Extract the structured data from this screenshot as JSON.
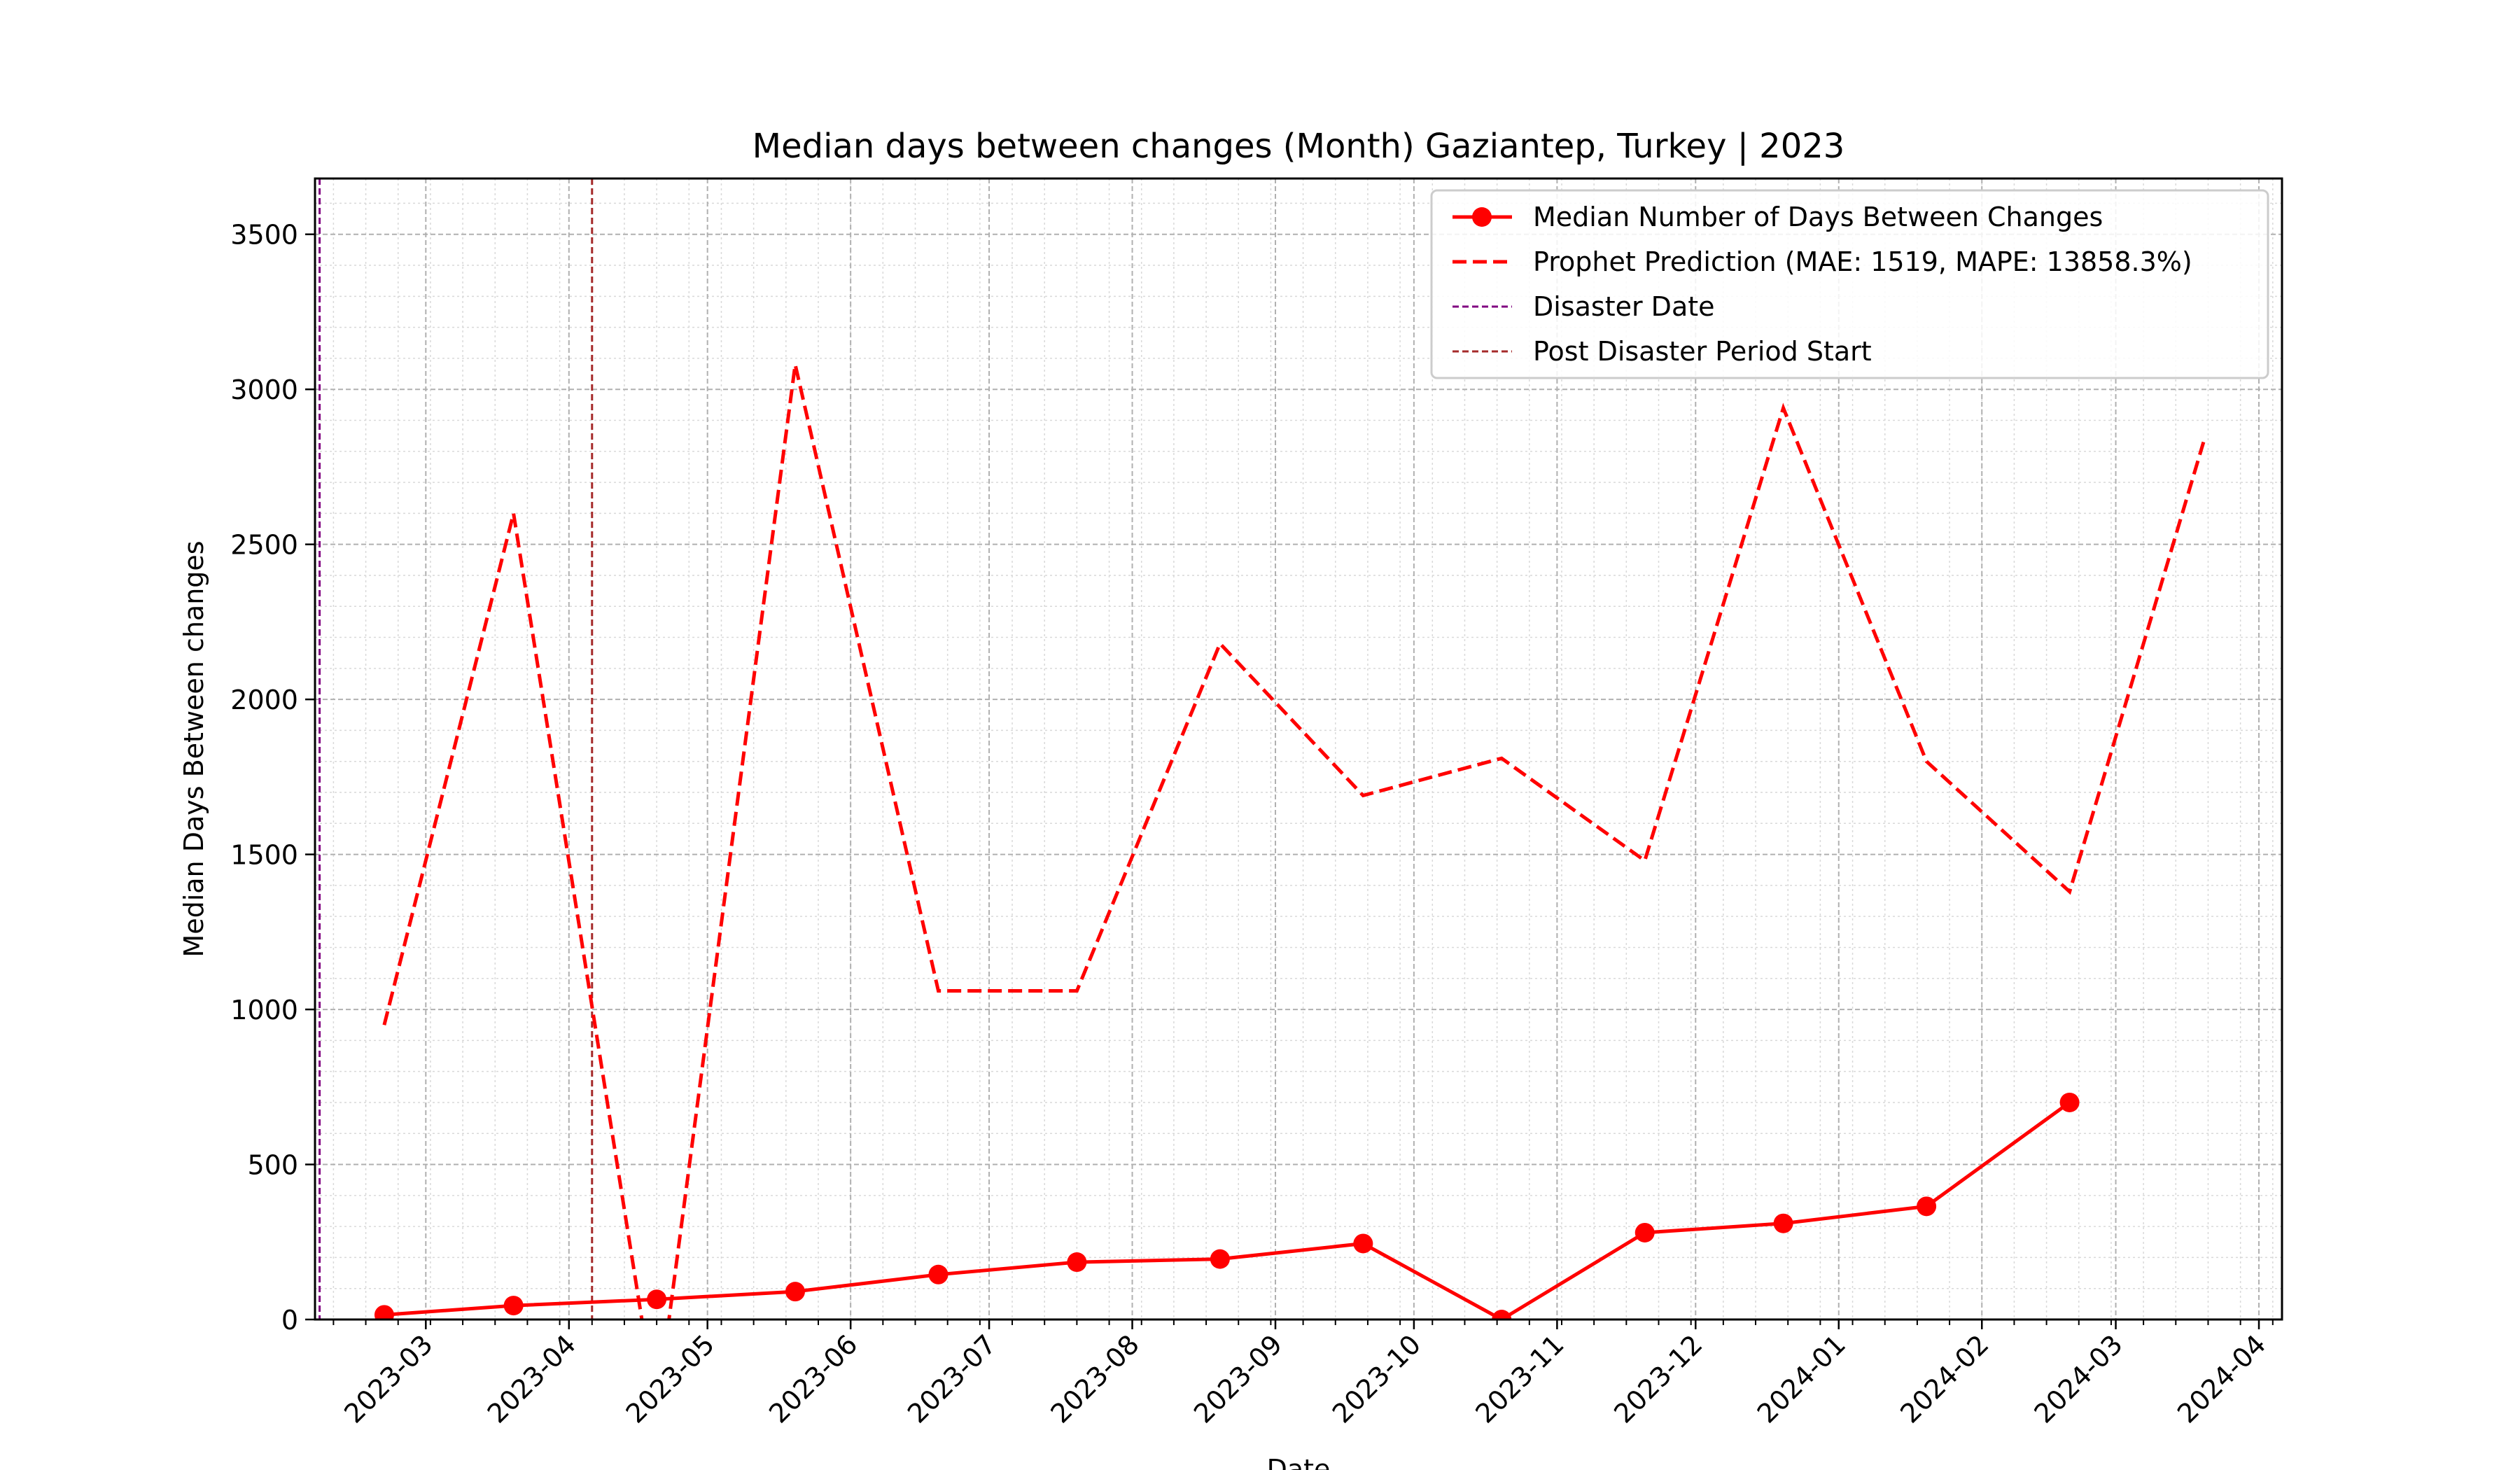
{
  "chart_data": {
    "type": "line",
    "title": "Median days between changes (Month) Gaziantep, Turkey | 2023",
    "xlabel": "Date",
    "ylabel": "Median Days Between changes",
    "ylim": [
      0,
      3680
    ],
    "xlim": [
      "2023-02-05",
      "2024-04-06"
    ],
    "grid": true,
    "legend_position": "top-right",
    "x_ticks": [
      "2023-03",
      "2023-04",
      "2023-05",
      "2023-06",
      "2023-07",
      "2023-08",
      "2023-09",
      "2023-10",
      "2023-11",
      "2023-12",
      "2024-01",
      "2024-02",
      "2024-03",
      "2024-04"
    ],
    "y_ticks": [
      "0",
      "500",
      "1000",
      "1500",
      "2000",
      "2500",
      "3000",
      "3500"
    ],
    "series": [
      {
        "name": "Median Number of Days Between Changes",
        "style": "solid-markers",
        "color": "#ff0000",
        "x": [
          "2023-02-20",
          "2023-03-20",
          "2023-04-20",
          "2023-05-20",
          "2023-06-20",
          "2023-07-20",
          "2023-08-20",
          "2023-09-20",
          "2023-10-20",
          "2023-11-20",
          "2023-12-20",
          "2024-01-20",
          "2024-02-20"
        ],
        "values": [
          15,
          45,
          65,
          90,
          145,
          185,
          195,
          245,
          0,
          280,
          310,
          365,
          700
        ]
      },
      {
        "name": "Prophet Prediction (MAE: 1519, MAPE: 13858.3%)",
        "style": "dashed",
        "color": "#ff0000",
        "x": [
          "2023-02-20",
          "2023-03-20",
          "2023-04-20",
          "2023-05-20",
          "2023-06-20",
          "2023-07-20",
          "2023-08-20",
          "2023-09-20",
          "2023-10-20",
          "2023-11-20",
          "2023-12-20",
          "2024-01-20",
          "2024-02-20",
          "2024-03-20"
        ],
        "values": [
          950,
          2600,
          -300,
          3080,
          1060,
          1060,
          2180,
          1690,
          1810,
          1480,
          2940,
          1800,
          1380,
          2830
        ]
      }
    ],
    "vlines": [
      {
        "name": "Disaster Date",
        "x": "2023-02-06",
        "color": "#800080"
      },
      {
        "name": "Post Disaster Period Start",
        "x": "2023-04-06",
        "color": "#a52a2a"
      }
    ]
  }
}
